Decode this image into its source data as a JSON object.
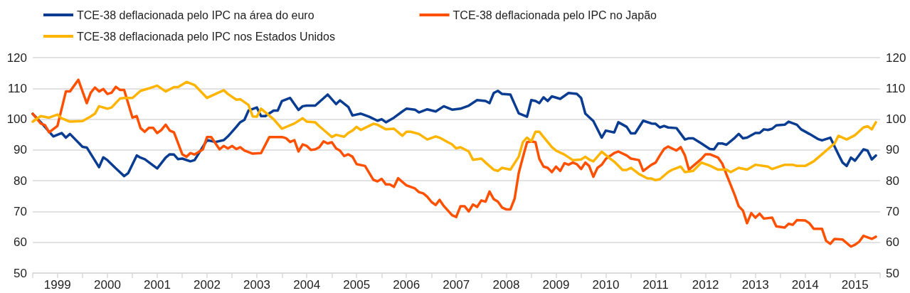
{
  "chart_data": {
    "type": "line",
    "legend": "top left",
    "grid": "y",
    "marker": "none",
    "ylim": [
      50,
      120
    ],
    "yticks": [
      50,
      60,
      70,
      80,
      90,
      100,
      110,
      120
    ],
    "y2lim": [
      50,
      120
    ],
    "y2ticks": [
      50,
      60,
      70,
      80,
      90,
      100,
      110,
      120
    ],
    "xlim": [
      "1999-01",
      "2016-01"
    ],
    "xticks": [
      {
        "value": "1999-01",
        "label": null
      },
      {
        "value": "1999-07",
        "label": "1999"
      },
      {
        "value": "2000-01",
        "label": null
      },
      {
        "value": "2000-07",
        "label": "2000"
      },
      {
        "value": "2001-01",
        "label": null
      },
      {
        "value": "2001-07",
        "label": "2001"
      },
      {
        "value": "2002-01",
        "label": null
      },
      {
        "value": "2002-07",
        "label": "2002"
      },
      {
        "value": "2003-01",
        "label": null
      },
      {
        "value": "2003-07",
        "label": "2003"
      },
      {
        "value": "2004-01",
        "label": null
      },
      {
        "value": "2004-07",
        "label": "2004"
      },
      {
        "value": "2005-01",
        "label": null
      },
      {
        "value": "2005-07",
        "label": "2005"
      },
      {
        "value": "2006-01",
        "label": null
      },
      {
        "value": "2006-07",
        "label": "2006"
      },
      {
        "value": "2007-01",
        "label": null
      },
      {
        "value": "2007-07",
        "label": "2007"
      },
      {
        "value": "2008-01",
        "label": null
      },
      {
        "value": "2008-07",
        "label": "2008"
      },
      {
        "value": "2009-01",
        "label": null
      },
      {
        "value": "2009-07",
        "label": "2009"
      },
      {
        "value": "2010-01",
        "label": null
      },
      {
        "value": "2010-07",
        "label": "2010"
      },
      {
        "value": "2011-01",
        "label": null
      },
      {
        "value": "2011-07",
        "label": "2011"
      },
      {
        "value": "2012-01",
        "label": null
      },
      {
        "value": "2012-07",
        "label": "2012"
      },
      {
        "value": "2013-01",
        "label": null
      },
      {
        "value": "2013-07",
        "label": "2013"
      },
      {
        "value": "2014-01",
        "label": null
      },
      {
        "value": "2014-07",
        "label": "2014"
      },
      {
        "value": "2015-01",
        "label": null
      },
      {
        "value": "2015-07",
        "label": "2015"
      },
      {
        "value": "2016-01",
        "label": null
      }
    ],
    "series": [
      {
        "name": "TCE-38 deflacionada pelo IPC na área do euro",
        "color": "#0a3d91",
        "x": [
          "1999-01",
          "1999-03",
          "1999-06",
          "1999-08",
          "1999-09",
          "1999-10",
          "2000-01",
          "2000-02",
          "2000-05",
          "2000-06",
          "2000-07",
          "2000-09",
          "2000-11",
          "2000-12",
          "2001-02",
          "2001-03",
          "2001-04",
          "2001-07",
          "2001-09",
          "2001-10",
          "2001-11",
          "2001-12",
          "2002-01",
          "2002-03",
          "2002-04",
          "2002-07",
          "2002-09",
          "2002-11",
          "2002-12",
          "2003-02",
          "2003-03",
          "2003-04",
          "2003-05",
          "2003-07",
          "2003-08",
          "2003-09",
          "2003-11",
          "2003-12",
          "2004-01",
          "2004-03",
          "2004-05",
          "2004-06",
          "2004-07",
          "2004-09",
          "2004-12",
          "2005-02",
          "2005-03",
          "2005-05",
          "2005-06",
          "2005-08",
          "2005-10",
          "2005-12",
          "2006-01",
          "2006-02",
          "2006-04",
          "2006-06",
          "2006-07",
          "2006-09",
          "2006-10",
          "2006-12",
          "2007-02",
          "2007-04",
          "2007-06",
          "2007-08",
          "2007-10",
          "2007-12",
          "2008-02",
          "2008-03",
          "2008-04",
          "2008-05",
          "2008-06",
          "2008-08",
          "2008-09",
          "2008-10",
          "2008-12",
          "2009-01",
          "2009-02",
          "2009-03",
          "2009-04",
          "2009-05",
          "2009-06",
          "2009-08",
          "2009-10",
          "2009-12",
          "2010-01",
          "2010-02",
          "2010-04",
          "2010-06",
          "2010-07",
          "2010-09",
          "2010-10",
          "2010-12",
          "2011-01",
          "2011-02",
          "2011-04",
          "2011-06",
          "2011-07",
          "2011-08",
          "2011-09",
          "2011-10",
          "2011-12",
          "2012-02",
          "2012-03",
          "2012-04",
          "2012-06",
          "2012-08",
          "2012-09",
          "2012-10",
          "2012-11",
          "2012-12",
          "2013-02",
          "2013-03",
          "2013-04",
          "2013-05",
          "2013-07",
          "2013-08",
          "2013-09",
          "2013-10",
          "2013-11",
          "2013-12",
          "2014-02",
          "2014-03",
          "2014-05",
          "2014-06",
          "2014-08",
          "2014-10",
          "2014-11",
          "2015-01",
          "2015-03",
          "2015-04",
          "2015-05",
          "2015-06",
          "2015-07",
          "2015-09",
          "2015-10",
          "2015-11",
          "2015-12"
        ],
        "values": [
          101.7,
          99,
          94.4,
          95.5,
          94,
          95.2,
          91,
          90.8,
          84.4,
          87.6,
          86.7,
          84,
          81.5,
          82.5,
          88.2,
          87.5,
          87,
          84,
          87.5,
          88.6,
          88.5,
          87,
          87.2,
          86.3,
          86.7,
          93.2,
          92.6,
          93.2,
          94.4,
          97.5,
          99,
          99.8,
          102.8,
          103.8,
          101,
          101,
          102.8,
          102.8,
          105.9,
          106.9,
          103,
          104.2,
          104.4,
          104.4,
          108,
          104.9,
          106.1,
          104,
          101.2,
          101.8,
          100.8,
          99.5,
          100,
          99,
          100.5,
          102.5,
          103.4,
          103.1,
          102.2,
          103.2,
          102.5,
          104.2,
          103.1,
          103.4,
          104.4,
          106.2,
          105.9,
          105.2,
          108.5,
          109.2,
          108.2,
          108,
          104.9,
          101.9,
          100.8,
          106.2,
          105.9,
          105.2,
          107.1,
          105.9,
          107.4,
          106.6,
          108.5,
          108.2,
          106.9,
          101.8,
          99.4,
          94,
          96.3,
          95.7,
          99,
          97.5,
          95.4,
          95.4,
          99.5,
          98.6,
          98.5,
          97.3,
          97.8,
          97.3,
          97.1,
          93.4,
          93.8,
          93.8,
          92.1,
          90.3,
          90.2,
          92.1,
          92.1,
          91.7,
          94,
          95.2,
          93.8,
          94,
          95.5,
          95.5,
          96.7,
          96.5,
          96.9,
          98,
          98.2,
          99.2,
          98.2,
          96.7,
          95.2,
          93.6,
          93.1,
          94,
          88.6,
          85.9,
          84.8,
          87.5,
          86.5,
          90.2,
          89.8,
          86.9,
          88.2
        ]
      },
      {
        "name": "TCE-38 deflacionada pelo IPC no Japão",
        "color": "#ff5000",
        "x": [
          "1999-01",
          "1999-03",
          "1999-04",
          "1999-05",
          "1999-07",
          "1999-09",
          "1999-10",
          "1999-12",
          "2000-02",
          "2000-03",
          "2000-04",
          "2000-05",
          "2000-06",
          "2000-07",
          "2000-08",
          "2000-09",
          "2000-10",
          "2000-11",
          "2001-01",
          "2001-02",
          "2001-03",
          "2001-04",
          "2001-05",
          "2001-06",
          "2001-07",
          "2001-08",
          "2001-09",
          "2001-10",
          "2001-11",
          "2002-01",
          "2002-02",
          "2002-03",
          "2002-04",
          "2002-06",
          "2002-07",
          "2002-08",
          "2002-10",
          "2002-11",
          "2002-12",
          "2003-01",
          "2003-02",
          "2003-03",
          "2003-04",
          "2003-06",
          "2003-08",
          "2003-10",
          "2004-01",
          "2004-02",
          "2004-03",
          "2004-04",
          "2004-05",
          "2004-06",
          "2004-07",
          "2004-08",
          "2004-09",
          "2004-10",
          "2004-11",
          "2004-12",
          "2005-01",
          "2005-02",
          "2005-03",
          "2005-04",
          "2005-05",
          "2005-06",
          "2005-07",
          "2005-09",
          "2005-11",
          "2005-12",
          "2006-01",
          "2006-02",
          "2006-03",
          "2006-04",
          "2006-05",
          "2006-07",
          "2006-09",
          "2006-10",
          "2006-11",
          "2006-12",
          "2007-01",
          "2007-02",
          "2007-03",
          "2007-04",
          "2007-06",
          "2007-07",
          "2007-08",
          "2007-09",
          "2007-10",
          "2007-11",
          "2007-12",
          "2008-01",
          "2008-02",
          "2008-03",
          "2008-04",
          "2008-05",
          "2008-06",
          "2008-07",
          "2008-08",
          "2008-09",
          "2008-10",
          "2008-11",
          "2008-12",
          "2009-01",
          "2009-02",
          "2009-03",
          "2009-04",
          "2009-05",
          "2009-06",
          "2009-07",
          "2009-08",
          "2009-09",
          "2009-10",
          "2009-11",
          "2009-12",
          "2010-01",
          "2010-02",
          "2010-03",
          "2010-04",
          "2010-05",
          "2010-06",
          "2010-07",
          "2010-09",
          "2010-10",
          "2010-12",
          "2011-01",
          "2011-03",
          "2011-04",
          "2011-06",
          "2011-07",
          "2011-08",
          "2011-09",
          "2011-10",
          "2011-12",
          "2012-01",
          "2012-02",
          "2012-03",
          "2012-04",
          "2012-06",
          "2012-07",
          "2012-08",
          "2012-10",
          "2012-11",
          "2012-12",
          "2013-02",
          "2013-03",
          "2013-04",
          "2013-05",
          "2013-06",
          "2013-07",
          "2013-08",
          "2013-09",
          "2013-11",
          "2013-12",
          "2014-02",
          "2014-03",
          "2014-04",
          "2014-05",
          "2014-07",
          "2014-08",
          "2014-09",
          "2014-11",
          "2014-12",
          "2015-01",
          "2015-02",
          "2015-04",
          "2015-06",
          "2015-07",
          "2015-08",
          "2015-09",
          "2015-11",
          "2015-12"
        ],
        "values": [
          101.8,
          98.6,
          98,
          95.7,
          97.8,
          109,
          109,
          112.8,
          105.2,
          108.6,
          110.3,
          109,
          109.8,
          108.2,
          108.6,
          110.5,
          109.5,
          109.5,
          100.5,
          101,
          97.1,
          95.9,
          97.2,
          97.2,
          95.5,
          96.5,
          98.2,
          96.3,
          95.7,
          88.6,
          87.8,
          89,
          88.5,
          90.2,
          94.2,
          94.2,
          90.2,
          91.3,
          90.5,
          91.3,
          90.3,
          90.9,
          89.8,
          88.8,
          89,
          94.2,
          94.2,
          93.8,
          92.6,
          93.2,
          89.5,
          91.8,
          91.3,
          90,
          90.2,
          90.9,
          92.8,
          92.1,
          92.5,
          90.5,
          89.8,
          88,
          88.6,
          87.8,
          85.4,
          84.8,
          80.3,
          79.8,
          80.6,
          78.8,
          78.8,
          78,
          80.8,
          78.5,
          77.5,
          76.3,
          75.9,
          74.8,
          73.1,
          72.1,
          73.8,
          71.8,
          68.8,
          68.2,
          71.7,
          71.7,
          70,
          72.3,
          71.5,
          73.6,
          73.2,
          76.5,
          74,
          73.2,
          71.3,
          70.7,
          70.7,
          74.2,
          82.5,
          87.7,
          92.5,
          92.8,
          92.5,
          87.1,
          84.6,
          84.2,
          82.8,
          84.6,
          83.2,
          85.7,
          85.2,
          85.9,
          85.4,
          83.8,
          85.9,
          84.8,
          81.3,
          84.2,
          85.2,
          87.1,
          89,
          89.5,
          88.2,
          87.2,
          86.7,
          83.2,
          85.2,
          85.9,
          88.2,
          90.3,
          91.1,
          89.8,
          90.9,
          88.2,
          83.6,
          84.8,
          87.1,
          88.6,
          88.6,
          87.5,
          85.5,
          82.1,
          75.2,
          71.7,
          70.3,
          66.2,
          69.5,
          68,
          69.3,
          67.7,
          68,
          65.2,
          64.8,
          66,
          65.7,
          67.2,
          67.1,
          66.2,
          64.4,
          64.4,
          60.5,
          59.5,
          61.1,
          60.9,
          58.6,
          59.2,
          60.2,
          62.1,
          61.1,
          61.8
        ]
      },
      {
        "name": "TCE-38 deflacionada pelo IPC nos Estados Unidos",
        "color": "#ffb400",
        "x": [
          "1999-01",
          "1999-03",
          "1999-05",
          "1999-07",
          "1999-08",
          "1999-10",
          "2000-01",
          "2000-03",
          "2000-04",
          "2000-05",
          "2000-07",
          "2000-08",
          "2000-10",
          "2000-11",
          "2001-01",
          "2001-03",
          "2001-05",
          "2001-07",
          "2001-09",
          "2001-11",
          "2001-12",
          "2002-02",
          "2002-04",
          "2002-07",
          "2002-09",
          "2002-11",
          "2002-12",
          "2003-02",
          "2003-03",
          "2003-05",
          "2003-06",
          "2003-07",
          "2003-08",
          "2003-11",
          "2004-01",
          "2004-04",
          "2004-06",
          "2004-07",
          "2004-09",
          "2004-10",
          "2004-12",
          "2005-01",
          "2005-02",
          "2005-04",
          "2005-05",
          "2005-06",
          "2005-07",
          "2005-08",
          "2005-11",
          "2005-12",
          "2006-02",
          "2006-04",
          "2006-06",
          "2006-07",
          "2006-08",
          "2006-10",
          "2006-12",
          "2007-02",
          "2007-03",
          "2007-05",
          "2007-06",
          "2007-07",
          "2007-08",
          "2007-10",
          "2007-11",
          "2008-01",
          "2008-02",
          "2008-04",
          "2008-05",
          "2008-06",
          "2008-08",
          "2008-10",
          "2008-11",
          "2008-12",
          "2009-01",
          "2009-02",
          "2009-03",
          "2009-06",
          "2009-07",
          "2009-09",
          "2009-11",
          "2010-01",
          "2010-02",
          "2010-03",
          "2010-04",
          "2010-06",
          "2010-08",
          "2010-09",
          "2010-11",
          "2010-12",
          "2011-01",
          "2011-02",
          "2011-03",
          "2011-05",
          "2011-06",
          "2011-07",
          "2011-08",
          "2011-10",
          "2011-11",
          "2012-01",
          "2012-02",
          "2012-04",
          "2012-06",
          "2012-08",
          "2012-10",
          "2012-12",
          "2013-01",
          "2013-03",
          "2013-05",
          "2013-07",
          "2013-10",
          "2013-11",
          "2014-02",
          "2014-04",
          "2014-05",
          "2014-07",
          "2014-09",
          "2014-11",
          "2015-02",
          "2015-03",
          "2015-05",
          "2015-07",
          "2015-09",
          "2015-10",
          "2015-11",
          "2015-12"
        ],
        "values": [
          99.2,
          101,
          100.5,
          101.5,
          100.3,
          99.2,
          99.4,
          100.9,
          101.8,
          104.2,
          103.4,
          103.8,
          106.7,
          106.9,
          106.9,
          109.2,
          110,
          110.9,
          109,
          110.4,
          110.4,
          112.1,
          111.1,
          106.9,
          108.2,
          109.4,
          108.2,
          106.3,
          106.5,
          104.6,
          100.9,
          100.8,
          103.4,
          100,
          96.9,
          98.6,
          100.3,
          99.2,
          99,
          97.7,
          95.4,
          94.2,
          94.9,
          94.3,
          95.5,
          96.3,
          97.5,
          96.5,
          98.5,
          98.2,
          96.7,
          96.9,
          94.6,
          95.9,
          95.9,
          95.2,
          93.4,
          94.4,
          94,
          92.5,
          91.8,
          90.5,
          90.9,
          89.5,
          86.8,
          87.2,
          85.9,
          83.6,
          83.2,
          84.2,
          83.6,
          87.8,
          92.6,
          94,
          92.8,
          95.9,
          95.9,
          90.9,
          89.8,
          88.5,
          86.7,
          86.9,
          87.8,
          86.9,
          86.3,
          89.4,
          87.2,
          86.2,
          83.5,
          83.5,
          84.2,
          83.2,
          82.2,
          80.8,
          80.7,
          80.2,
          80.5,
          82.8,
          83.6,
          84.6,
          82.8,
          83.2,
          85.9,
          84.9,
          83.6,
          83.6,
          82.8,
          84.2,
          83.6,
          85.2,
          84.6,
          83.8,
          85.2,
          85.2,
          84.8,
          84.8,
          86.3,
          88.6,
          92.1,
          94.6,
          93.4,
          94.8,
          97.3,
          97.7,
          96.7,
          99
        ]
      }
    ]
  }
}
